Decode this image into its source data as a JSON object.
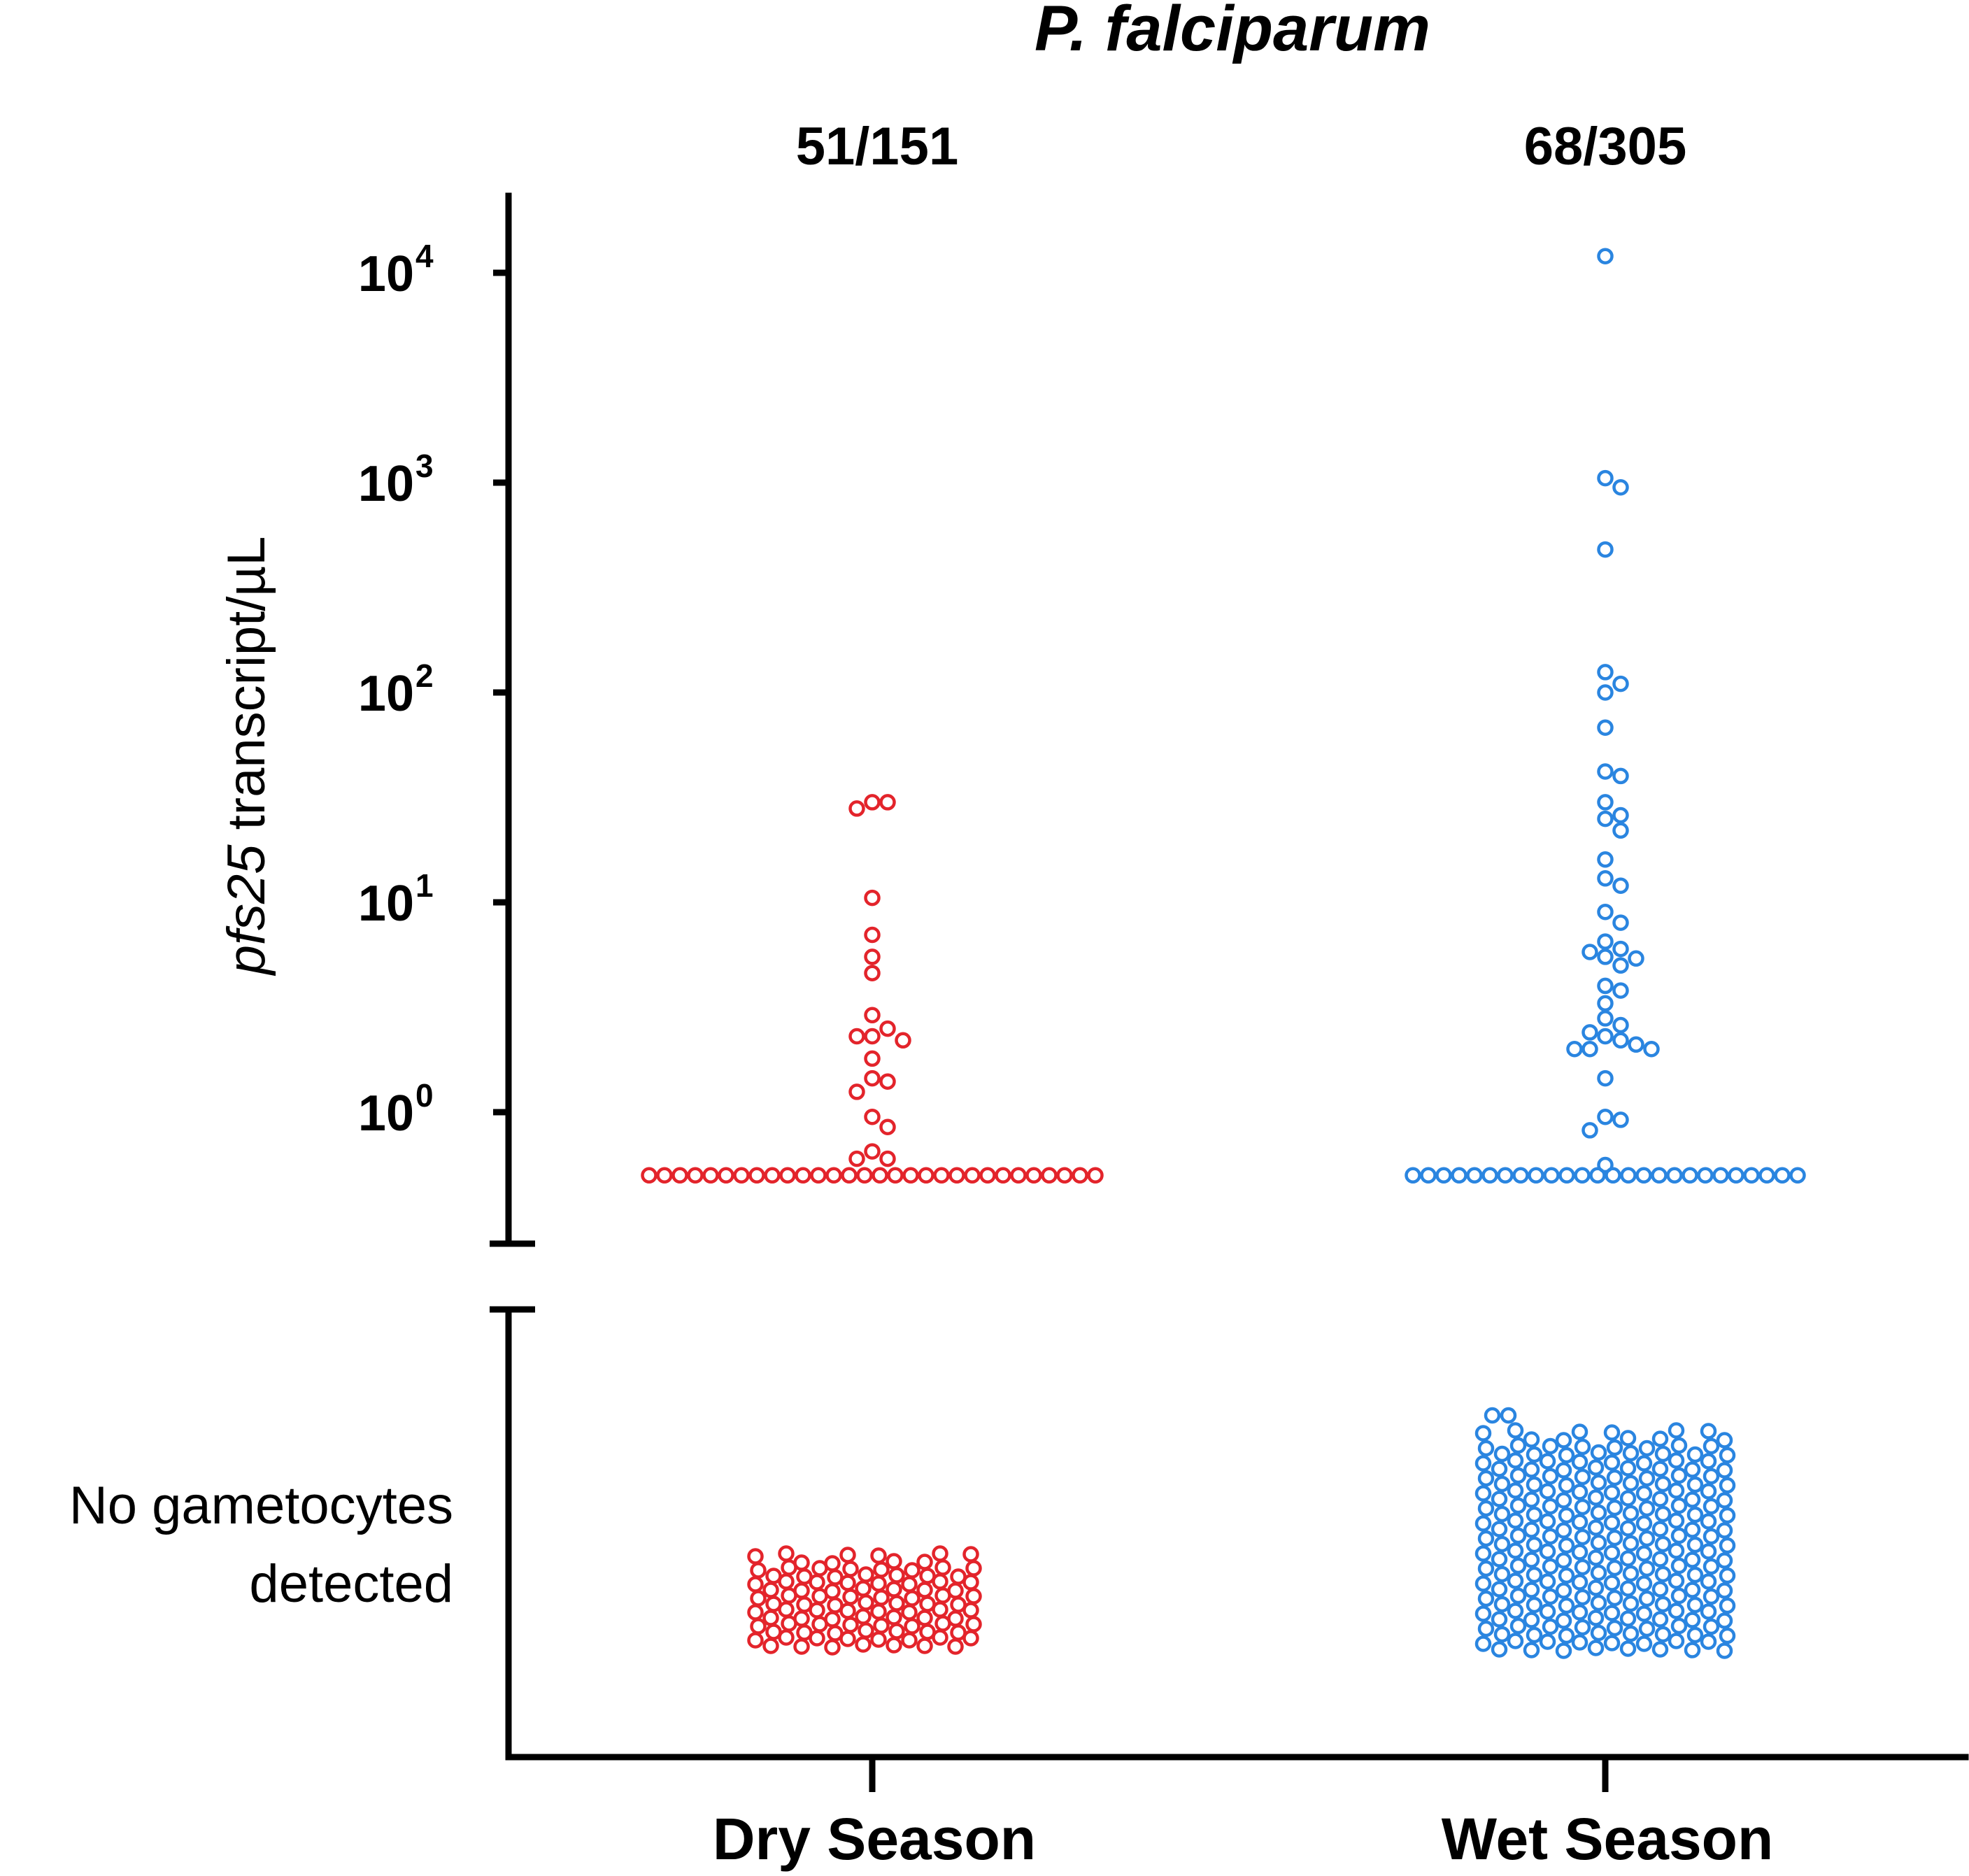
{
  "chart_data": {
    "type": "scatter",
    "subtype": "dot-plot",
    "title": "P. falciparum",
    "ylabel_italic": "pfs25",
    "ylabel_rest": " transcript/µL",
    "yscale": "log10",
    "ylim_log10": [
      -0.6,
      4.3
    ],
    "yticks": [
      {
        "base": "10",
        "exp": "0",
        "log": 0
      },
      {
        "base": "10",
        "exp": "1",
        "log": 1
      },
      {
        "base": "10",
        "exp": "2",
        "log": 2
      },
      {
        "base": "10",
        "exp": "3",
        "log": 3
      },
      {
        "base": "10",
        "exp": "4",
        "log": 4
      }
    ],
    "floor_value": 0.5,
    "no_detect_label_line1": "No gametocytes",
    "no_detect_label_line2": "detected",
    "categories": [
      "Dry Season",
      "Wet Season"
    ],
    "series": [
      {
        "name": "Dry Season",
        "color": "#e3242b",
        "positive_label": "51/151",
        "positive": 51,
        "total": 151,
        "values": [
          28,
          30,
          30,
          10.5,
          7,
          5.5,
          4.6,
          2.9,
          2.5,
          2.3,
          2.3,
          2.2,
          1.8,
          1.45,
          1.4,
          1.25,
          0.95,
          0.85,
          0.65,
          0.6,
          0.6
        ],
        "floor_count": 30,
        "undetected_count": 100
      },
      {
        "name": "Wet Season",
        "color": "#2a85e0",
        "positive_label": "68/305",
        "positive": 68,
        "total": 305,
        "values": [
          12000,
          1050,
          950,
          480,
          125,
          110,
          100,
          68,
          42,
          40,
          30,
          26,
          25,
          22,
          16,
          13,
          12,
          9,
          8,
          6.5,
          6,
          5.8,
          5.5,
          5.4,
          5,
          4,
          3.8,
          3.3,
          2.8,
          2.6,
          2.4,
          2.3,
          2.2,
          2.1,
          2.0,
          2.0,
          2.0,
          1.45,
          0.95,
          0.92,
          0.82,
          0.56
        ],
        "floor_count": 26,
        "undetected_count": 237
      }
    ]
  }
}
